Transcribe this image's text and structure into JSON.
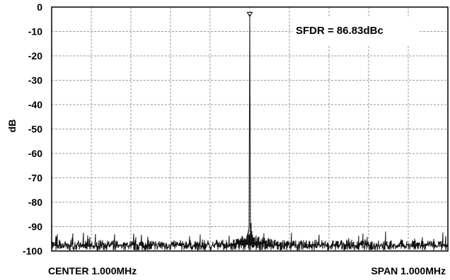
{
  "chart_data": {
    "type": "line",
    "title": "",
    "ylabel": "dB",
    "ylim": [
      -100,
      0
    ],
    "yticks": [
      "0",
      "-10",
      "-20",
      "-30",
      "-40",
      "-50",
      "-60",
      "-70",
      "-80",
      "-90",
      "-100"
    ],
    "x_center_label": "CENTER 1.000MHz",
    "x_span_label": "SPAN 1.000MHz",
    "x_unit": "MHz",
    "xlim": [
      0.5,
      1.5
    ],
    "grid": true,
    "annotation": "SFDR = 86.83dBc",
    "series": [
      {
        "peak": {
          "x": 1.0,
          "y": -3
        },
        "noise_floor_db": -97,
        "spur_near_peak": {
          "x": 1.001,
          "y": -89
        }
      }
    ],
    "marker": {
      "x": 1.0,
      "y": -3,
      "shape": "triangle-down"
    }
  }
}
